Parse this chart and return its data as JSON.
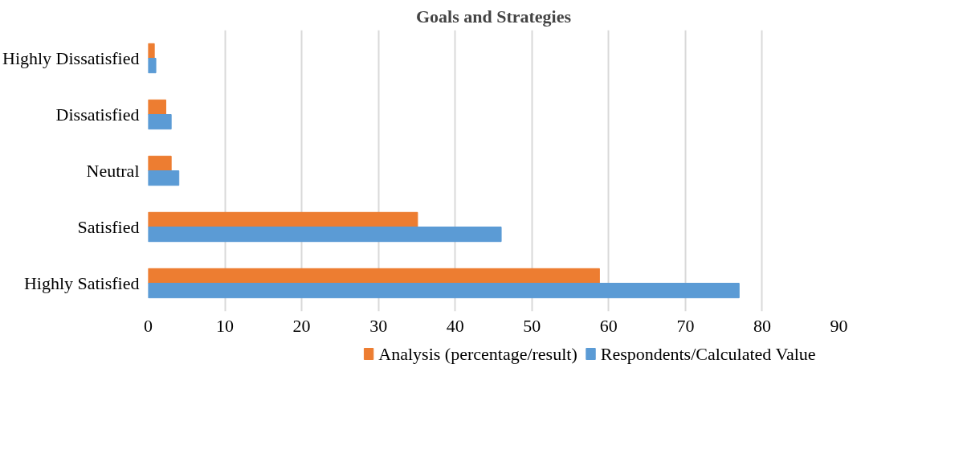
{
  "chart_data": {
    "type": "bar",
    "orientation": "horizontal",
    "title": "Goals and Strategies",
    "categories": [
      "Highly Dissatisfied",
      "Dissatisfied",
      "Neutral",
      "Satisfied",
      "Highly Satisfied"
    ],
    "series": [
      {
        "name": "Analysis (percentage/result)",
        "color": "#ed7d31",
        "values": [
          0.8,
          2.3,
          3.0,
          35.1,
          58.8
        ]
      },
      {
        "name": "Respondents/Calculated Value",
        "color": "#5b9bd5",
        "values": [
          1,
          3,
          4,
          46,
          77
        ]
      }
    ],
    "xlim": [
      0,
      90
    ],
    "xticks": [
      0,
      10,
      20,
      30,
      40,
      50,
      60,
      70,
      80,
      90
    ],
    "grid": "x",
    "legend": "bottom"
  }
}
